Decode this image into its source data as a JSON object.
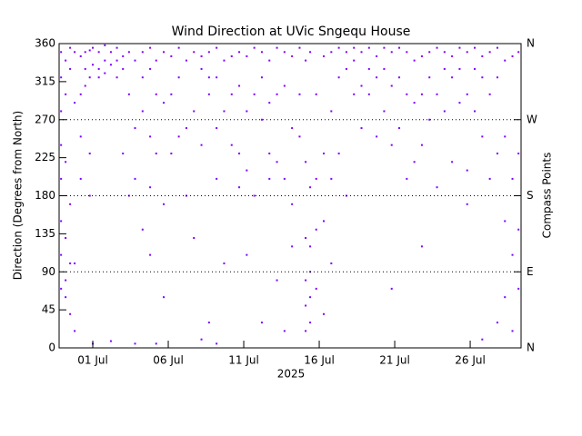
{
  "chart_data": {
    "type": "scatter",
    "title": "Wind Direction at UVic Sngequ House",
    "xlabel": "2025",
    "ylabel": "Direction (Degrees from North)",
    "y2label": "Compass Points",
    "color": "#7f00ff",
    "grid": true,
    "xlim": [
      -1.23,
      29.37
    ],
    "xticks": [
      {
        "value": 1,
        "label": "01 Jul"
      },
      {
        "value": 6,
        "label": "06 Jul"
      },
      {
        "value": 11,
        "label": "11 Jul"
      },
      {
        "value": 16,
        "label": "16 Jul"
      },
      {
        "value": 21,
        "label": "21 Jul"
      },
      {
        "value": 26,
        "label": "26 Jul"
      }
    ],
    "ylim": [
      0,
      360
    ],
    "yticks": [
      0,
      45,
      90,
      135,
      180,
      225,
      270,
      315,
      360
    ],
    "y2lim": [
      0,
      360
    ],
    "y2ticks": [
      {
        "value": 0,
        "label": "N"
      },
      {
        "value": 90,
        "label": "E"
      },
      {
        "value": 180,
        "label": "S"
      },
      {
        "value": 270,
        "label": "W"
      },
      {
        "value": 360,
        "label": "N"
      }
    ],
    "x": [
      -1.1,
      -1.1,
      -1.1,
      -1.1,
      -1.1,
      -1.1,
      -1.1,
      -1.1,
      -0.8,
      -0.8,
      -0.8,
      -0.8,
      -0.8,
      -0.8,
      -0.5,
      -0.5,
      -0.5,
      -0.5,
      -0.5,
      -0.2,
      -0.2,
      -0.2,
      -0.2,
      0.2,
      0.2,
      0.2,
      0.2,
      0.5,
      0.5,
      0.5,
      0.8,
      0.8,
      0.8,
      0.8,
      1.0,
      1.0,
      1.0,
      1.4,
      1.4,
      1.4,
      1.8,
      1.8,
      1.8,
      2.2,
      2.2,
      2.2,
      2.6,
      2.6,
      2.6,
      3.0,
      3.0,
      3.0,
      3.4,
      3.4,
      3.4,
      3.8,
      3.8,
      3.8,
      3.8,
      4.3,
      4.3,
      4.3,
      4.3,
      4.8,
      4.8,
      4.8,
      4.8,
      4.8,
      5.2,
      5.2,
      5.2,
      5.2,
      5.7,
      5.7,
      5.7,
      5.7,
      6.2,
      6.2,
      6.2,
      6.7,
      6.7,
      6.7,
      7.2,
      7.2,
      7.2,
      7.7,
      7.7,
      7.7,
      8.2,
      8.2,
      8.2,
      8.2,
      8.7,
      8.7,
      8.7,
      8.7,
      9.2,
      9.2,
      9.2,
      9.2,
      9.2,
      9.7,
      9.7,
      9.7,
      10.2,
      10.2,
      10.2,
      10.7,
      10.7,
      10.7,
      10.7,
      11.2,
      11.2,
      11.2,
      11.2,
      11.7,
      11.7,
      11.7,
      12.2,
      12.2,
      12.2,
      12.2,
      12.7,
      12.7,
      12.7,
      12.7,
      13.2,
      13.2,
      13.2,
      13.2,
      13.7,
      13.7,
      13.7,
      13.7,
      14.2,
      14.2,
      14.2,
      14.2,
      14.7,
      14.7,
      14.7,
      15.1,
      15.1,
      15.1,
      15.1,
      15.1,
      15.1,
      15.4,
      15.4,
      15.4,
      15.4,
      15.4,
      15.4,
      15.8,
      15.8,
      15.8,
      15.8,
      16.3,
      16.3,
      16.3,
      16.3,
      16.8,
      16.8,
      16.8,
      16.8,
      17.3,
      17.3,
      17.3,
      17.8,
      17.8,
      17.8,
      18.3,
      18.3,
      18.3,
      18.8,
      18.8,
      18.8,
      19.3,
      19.3,
      19.3,
      19.8,
      19.8,
      19.8,
      20.3,
      20.3,
      20.3,
      20.8,
      20.8,
      20.8,
      20.8,
      21.3,
      21.3,
      21.3,
      21.8,
      21.8,
      21.8,
      22.3,
      22.3,
      22.3,
      22.8,
      22.8,
      22.8,
      22.8,
      23.3,
      23.3,
      23.3,
      23.8,
      23.8,
      23.8,
      24.3,
      24.3,
      24.3,
      24.8,
      24.8,
      24.8,
      25.3,
      25.3,
      25.3,
      25.8,
      25.8,
      25.8,
      25.8,
      26.3,
      26.3,
      26.3,
      26.8,
      26.8,
      26.8,
      26.8,
      27.3,
      27.3,
      27.3,
      27.8,
      27.8,
      27.8,
      27.8,
      28.3,
      28.3,
      28.3,
      28.3,
      28.8,
      28.8,
      28.8,
      28.8,
      29.2,
      29.2,
      29.2,
      29.2
    ],
    "values": [
      350,
      320,
      280,
      240,
      200,
      150,
      110,
      70,
      340,
      300,
      220,
      130,
      80,
      60,
      355,
      330,
      170,
      100,
      40,
      350,
      290,
      100,
      20,
      345,
      300,
      250,
      200,
      350,
      330,
      310,
      352,
      320,
      230,
      180,
      355,
      335,
      5,
      350,
      330,
      320,
      358,
      340,
      325,
      350,
      335,
      8,
      355,
      340,
      320,
      345,
      330,
      230,
      350,
      300,
      180,
      340,
      260,
      200,
      5,
      350,
      320,
      280,
      140,
      355,
      330,
      250,
      190,
      110,
      340,
      300,
      230,
      5,
      350,
      290,
      170,
      60,
      345,
      300,
      230,
      355,
      320,
      250,
      340,
      260,
      180,
      350,
      280,
      130,
      345,
      330,
      240,
      10,
      350,
      320,
      300,
      30,
      355,
      320,
      260,
      200,
      5,
      340,
      280,
      100,
      345,
      300,
      240,
      350,
      310,
      230,
      190,
      345,
      280,
      210,
      110,
      355,
      300,
      180,
      350,
      320,
      270,
      30,
      340,
      290,
      230,
      200,
      355,
      300,
      220,
      80,
      350,
      310,
      200,
      20,
      345,
      260,
      170,
      120,
      355,
      300,
      250,
      340,
      220,
      130,
      80,
      50,
      20,
      350,
      190,
      120,
      90,
      60,
      30,
      300,
      200,
      140,
      70,
      345,
      230,
      150,
      40,
      350,
      280,
      200,
      100,
      355,
      320,
      230,
      350,
      330,
      180,
      355,
      340,
      300,
      350,
      310,
      260,
      355,
      330,
      300,
      345,
      320,
      250,
      355,
      330,
      280,
      350,
      310,
      240,
      70,
      355,
      320,
      260,
      350,
      300,
      200,
      340,
      290,
      220,
      345,
      300,
      240,
      120,
      350,
      320,
      270,
      355,
      300,
      190,
      350,
      330,
      280,
      345,
      320,
      220,
      355,
      330,
      290,
      350,
      300,
      210,
      170,
      355,
      330,
      280,
      345,
      320,
      250,
      10,
      350,
      300,
      200,
      355,
      320,
      230,
      30,
      340,
      250,
      150,
      60,
      345,
      200,
      110,
      20,
      350,
      230,
      140,
      70
    ]
  }
}
